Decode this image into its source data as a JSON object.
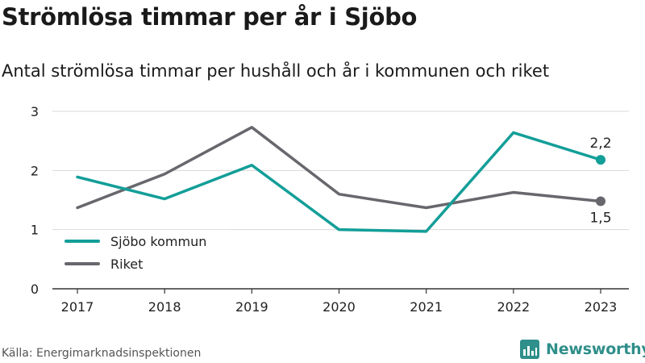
{
  "header": {
    "title": "Strömlösa timmar per år i Sjöbo",
    "subtitle": "Antal strömlösa timmar per hushåll och år i kommunen och riket"
  },
  "footer": {
    "source": "Källa: Energimarknadsinspektionen",
    "brand": "Newsworthy",
    "brand_icon": "bar-chart-logo-icon"
  },
  "colors": {
    "sjobo": "#139e98",
    "riket": "#68676d",
    "grid": "#d9d9d9",
    "axis": "#333333",
    "brand": "#2f8f8a"
  },
  "chart_data": {
    "type": "line",
    "title": "Strömlösa timmar per år i Sjöbo",
    "subtitle": "Antal strömlösa timmar per hushåll och år i kommunen och riket",
    "xlabel": "",
    "ylabel": "",
    "categories": [
      "2017",
      "2018",
      "2019",
      "2020",
      "2021",
      "2022",
      "2023"
    ],
    "ylim": [
      0,
      3
    ],
    "yticks": [
      "0",
      "1",
      "2",
      "3"
    ],
    "grid": true,
    "legend": "bottom-left",
    "series": [
      {
        "name": "Sjöbo kommun",
        "values": [
          1.89,
          1.52,
          2.09,
          1.0,
          0.97,
          2.64,
          2.18
        ],
        "end_label": "2,2"
      },
      {
        "name": "Riket",
        "values": [
          1.37,
          1.94,
          2.73,
          1.6,
          1.37,
          1.63,
          1.48
        ],
        "end_label": "1,5"
      }
    ]
  }
}
